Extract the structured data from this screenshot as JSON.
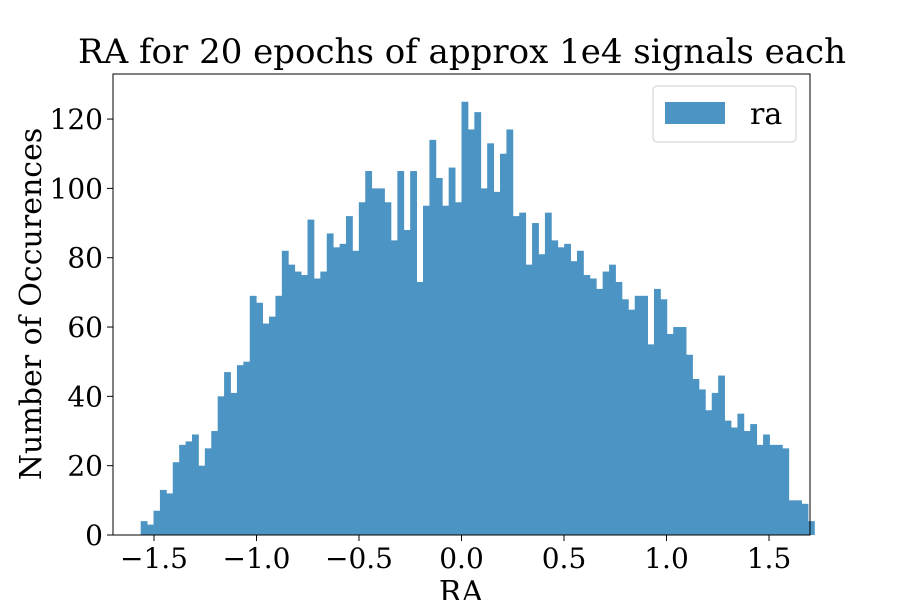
{
  "chart_data": {
    "type": "bar",
    "title": "RA for 20 epochs of approx 1e4 signals each",
    "xlabel": "RA",
    "ylabel": "Number of Occurences",
    "xlim": [
      -1.7,
      1.7
    ],
    "ylim": [
      0,
      133
    ],
    "xticks": [
      -1.5,
      -1.0,
      -0.5,
      0.0,
      0.5,
      1.0,
      1.5
    ],
    "xtick_labels": [
      "−1.5",
      "−1.0",
      "−0.5",
      "0.0",
      "0.5",
      "1.0",
      "1.5"
    ],
    "yticks": [
      0,
      20,
      40,
      60,
      80,
      100,
      120
    ],
    "ytick_labels": [
      "0",
      "20",
      "40",
      "60",
      "80",
      "100",
      "120"
    ],
    "grid": false,
    "legend_position": "top-right",
    "series": [
      {
        "name": "ra",
        "color": "#4c94c4",
        "bin_start": -1.565,
        "bin_width": 0.0313,
        "values": [
          4,
          3,
          7,
          13,
          12,
          21,
          26,
          27,
          29,
          20,
          25,
          30,
          40,
          47,
          41,
          49,
          50,
          69,
          67,
          61,
          63,
          69,
          82,
          78,
          76,
          75,
          91,
          74,
          76,
          87,
          83,
          84,
          92,
          82,
          96,
          105,
          100,
          100,
          96,
          85,
          105,
          88,
          105,
          73,
          95,
          114,
          103,
          95,
          106,
          96,
          125,
          117,
          122,
          100,
          113,
          99,
          110,
          117,
          92,
          93,
          78,
          90,
          81,
          93,
          85,
          83,
          84,
          79,
          82,
          75,
          74,
          71,
          76,
          78,
          73,
          68,
          65,
          69,
          69,
          55,
          71,
          68,
          58,
          60,
          60,
          52,
          45,
          42,
          36,
          41,
          46,
          33,
          31,
          35,
          30,
          32,
          26,
          29,
          26,
          26,
          25,
          10,
          10,
          9,
          4
        ]
      }
    ]
  }
}
